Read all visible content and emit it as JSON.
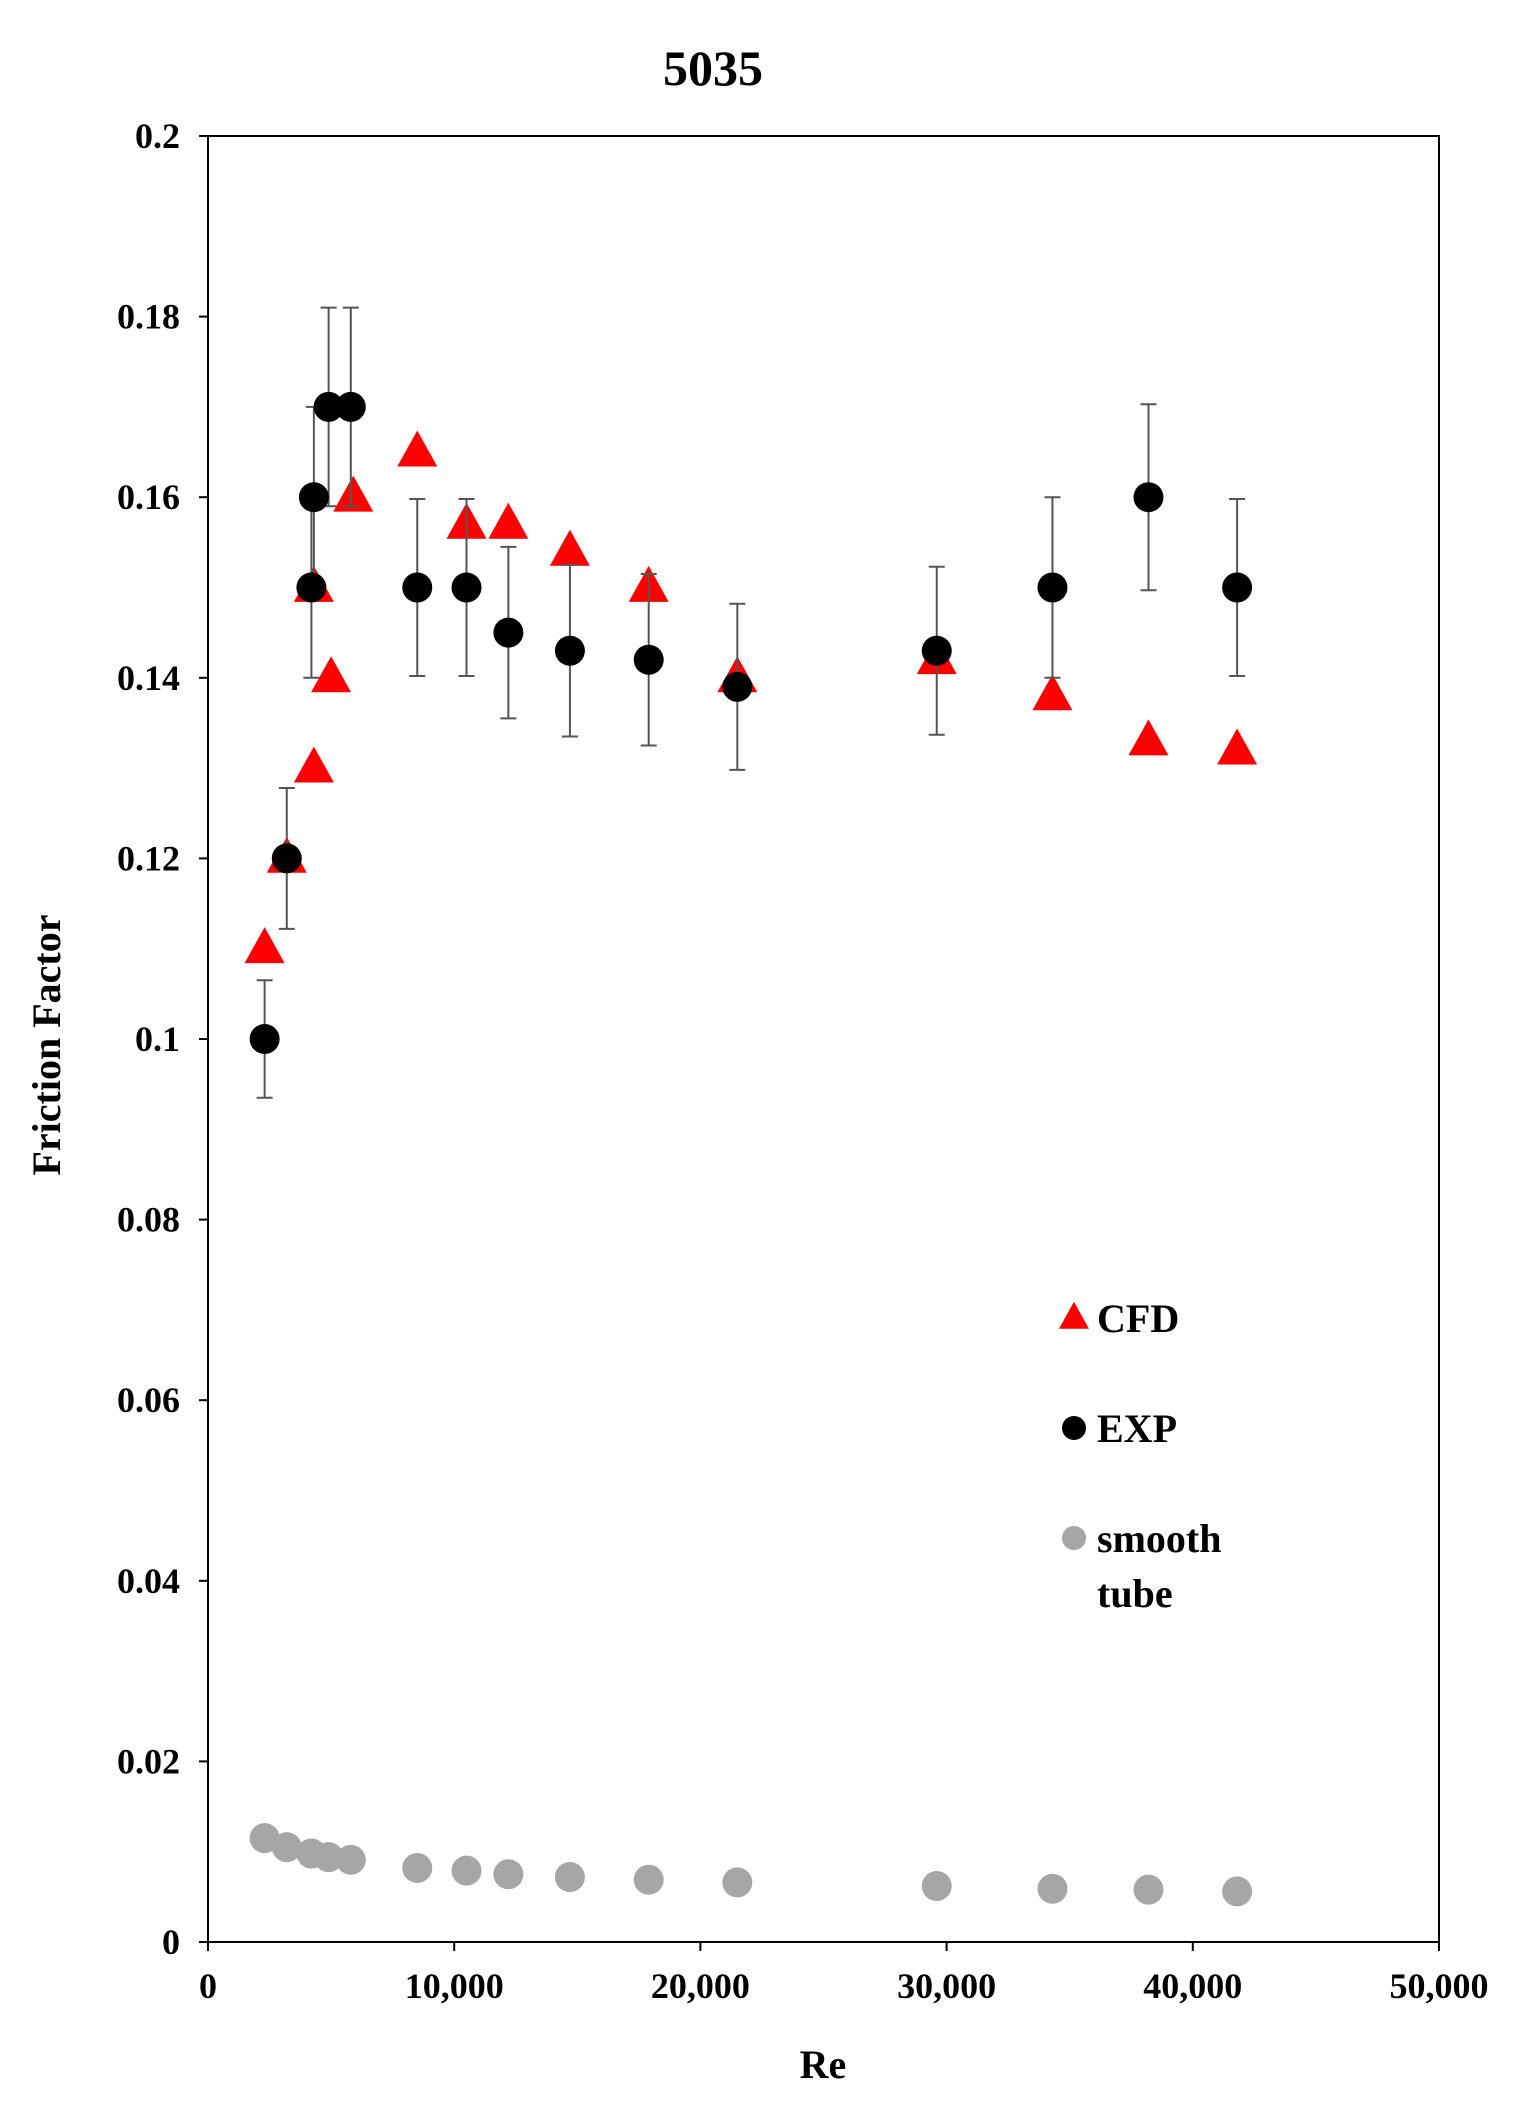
{
  "chart_data": {
    "type": "scatter",
    "title": "5035",
    "xlabel": "Re",
    "ylabel": "Friction Factor",
    "xlim": [
      0,
      50000
    ],
    "ylim": [
      0,
      0.2
    ],
    "x_ticks": [
      0,
      10000,
      20000,
      30000,
      40000,
      50000
    ],
    "x_tick_labels": [
      "0",
      "10,000",
      "20,000",
      "30,000",
      "40,000",
      "50,000"
    ],
    "y_ticks": [
      0,
      0.02,
      0.04,
      0.06,
      0.08,
      0.1,
      0.12,
      0.14,
      0.16,
      0.18,
      0.2
    ],
    "y_tick_labels": [
      "0",
      "0.02",
      "0.04",
      "0.06",
      "0.08",
      "0.1",
      "0.12",
      "0.14",
      "0.16",
      "0.18",
      "0.2"
    ],
    "grid": false,
    "legend_position": "bottom-right",
    "series": [
      {
        "name": "CFD",
        "marker": "triangle",
        "color": "#ff0000",
        "x": [
          2300,
          3200,
          4300,
          4300,
          5000,
          5900,
          8500,
          10500,
          12200,
          14700,
          17900,
          21500,
          29600,
          34300,
          38200,
          41800
        ],
        "y": [
          0.11,
          0.12,
          0.13,
          0.15,
          0.14,
          0.16,
          0.165,
          0.157,
          0.157,
          0.154,
          0.15,
          0.14,
          0.142,
          0.138,
          0.133,
          0.132
        ]
      },
      {
        "name": "EXP",
        "marker": "circle",
        "color": "#000000",
        "x": [
          2300,
          3200,
          4200,
          4300,
          4900,
          5800,
          8500,
          10500,
          12200,
          14700,
          17900,
          21500,
          29600,
          34300,
          38200,
          41800
        ],
        "y": [
          0.1,
          0.12,
          0.15,
          0.16,
          0.17,
          0.17,
          0.15,
          0.15,
          0.145,
          0.143,
          0.142,
          0.139,
          0.143,
          0.15,
          0.16,
          0.15
        ],
        "error": [
          0.0065,
          0.0078,
          0.01,
          0.01,
          0.011,
          0.011,
          0.0098,
          0.0098,
          0.0095,
          0.0095,
          0.0095,
          0.0092,
          0.0093,
          0.01,
          0.0103,
          0.0098
        ],
        "error_bar_color": "#555555"
      },
      {
        "name": "smooth tube",
        "label_lines": [
          "smooth",
          "tube"
        ],
        "marker": "circle",
        "color": "#a6a6a6",
        "x": [
          2300,
          3200,
          4200,
          4900,
          5800,
          8500,
          10500,
          12200,
          14700,
          17900,
          21500,
          29600,
          34300,
          38200,
          41800
        ],
        "y": [
          0.0115,
          0.0105,
          0.0098,
          0.0094,
          0.0091,
          0.0082,
          0.0079,
          0.0075,
          0.0072,
          0.0069,
          0.0066,
          0.0062,
          0.0059,
          0.0058,
          0.0056
        ]
      }
    ]
  }
}
